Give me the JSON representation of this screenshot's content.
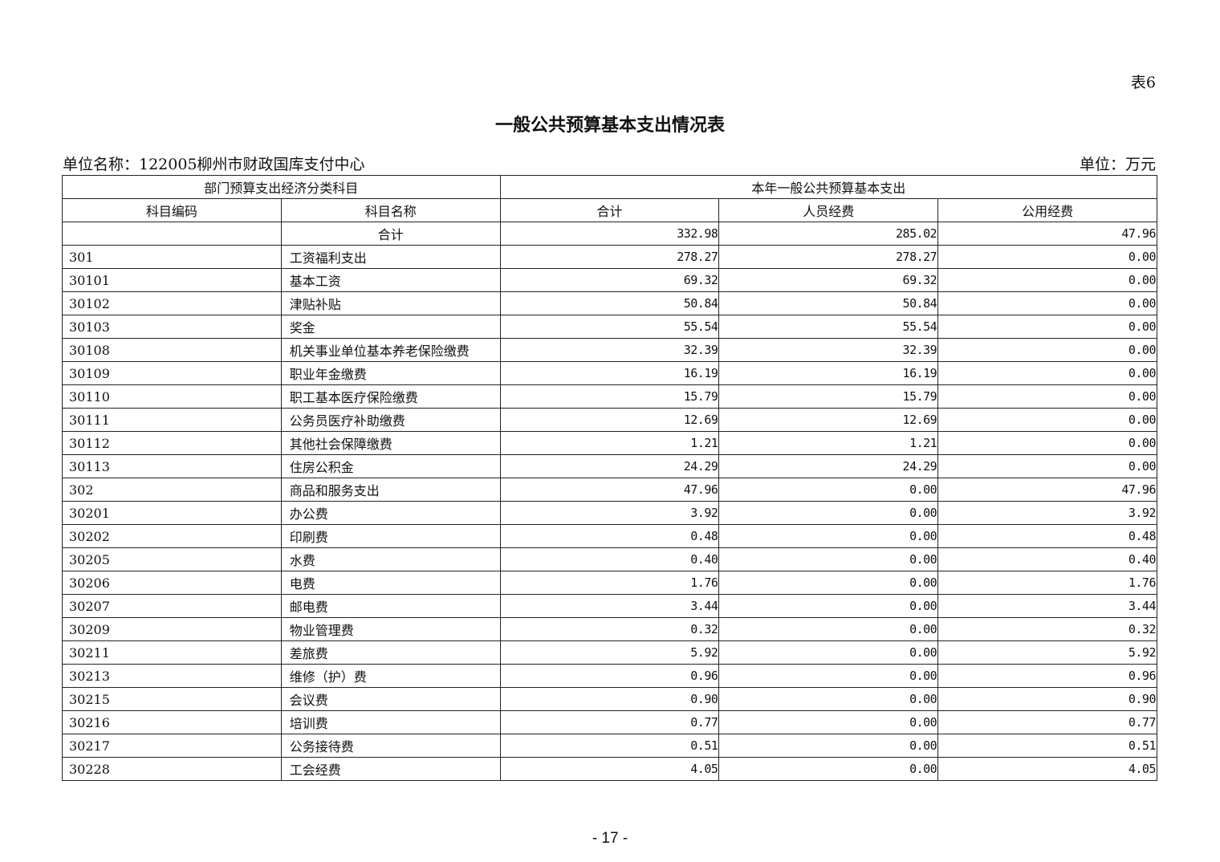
{
  "doc": {
    "table_tag": "表6",
    "title": "一般公共预算基本支出情况表",
    "unit_name": "单位名称：122005柳州市财政国库支付中心",
    "unit": "单位：万元",
    "page_number": "- 17 -"
  },
  "table": {
    "group_headers": [
      "部门预算支出经济分类科目",
      "本年一般公共预算基本支出"
    ],
    "headers": [
      "科目编码",
      "科目名称",
      "合计",
      "人员经费",
      "公用经费"
    ],
    "total_row": {
      "label": "合计",
      "total": "332.98",
      "personnel": "285.02",
      "public": "47.96"
    },
    "rows": [
      [
        "301",
        "工资福利支出",
        "278.27",
        "278.27",
        "0.00"
      ],
      [
        "30101",
        "基本工资",
        "69.32",
        "69.32",
        "0.00"
      ],
      [
        "30102",
        "津贴补贴",
        "50.84",
        "50.84",
        "0.00"
      ],
      [
        "30103",
        "奖金",
        "55.54",
        "55.54",
        "0.00"
      ],
      [
        "30108",
        "机关事业单位基本养老保险缴费",
        "32.39",
        "32.39",
        "0.00"
      ],
      [
        "30109",
        "职业年金缴费",
        "16.19",
        "16.19",
        "0.00"
      ],
      [
        "30110",
        "职工基本医疗保险缴费",
        "15.79",
        "15.79",
        "0.00"
      ],
      [
        "30111",
        "公务员医疗补助缴费",
        "12.69",
        "12.69",
        "0.00"
      ],
      [
        "30112",
        "其他社会保障缴费",
        "1.21",
        "1.21",
        "0.00"
      ],
      [
        "30113",
        "住房公积金",
        "24.29",
        "24.29",
        "0.00"
      ],
      [
        "302",
        "商品和服务支出",
        "47.96",
        "0.00",
        "47.96"
      ],
      [
        "30201",
        "办公费",
        "3.92",
        "0.00",
        "3.92"
      ],
      [
        "30202",
        "印刷费",
        "0.48",
        "0.00",
        "0.48"
      ],
      [
        "30205",
        "水费",
        "0.40",
        "0.00",
        "0.40"
      ],
      [
        "30206",
        "电费",
        "1.76",
        "0.00",
        "1.76"
      ],
      [
        "30207",
        "邮电费",
        "3.44",
        "0.00",
        "3.44"
      ],
      [
        "30209",
        "物业管理费",
        "0.32",
        "0.00",
        "0.32"
      ],
      [
        "30211",
        "差旅费",
        "5.92",
        "0.00",
        "5.92"
      ],
      [
        "30213",
        "维修（护）费",
        "0.96",
        "0.00",
        "0.96"
      ],
      [
        "30215",
        "会议费",
        "0.90",
        "0.00",
        "0.90"
      ],
      [
        "30216",
        "培训费",
        "0.77",
        "0.00",
        "0.77"
      ],
      [
        "30217",
        "公务接待费",
        "0.51",
        "0.00",
        "0.51"
      ],
      [
        "30228",
        "工会经费",
        "4.05",
        "0.00",
        "4.05"
      ]
    ]
  }
}
